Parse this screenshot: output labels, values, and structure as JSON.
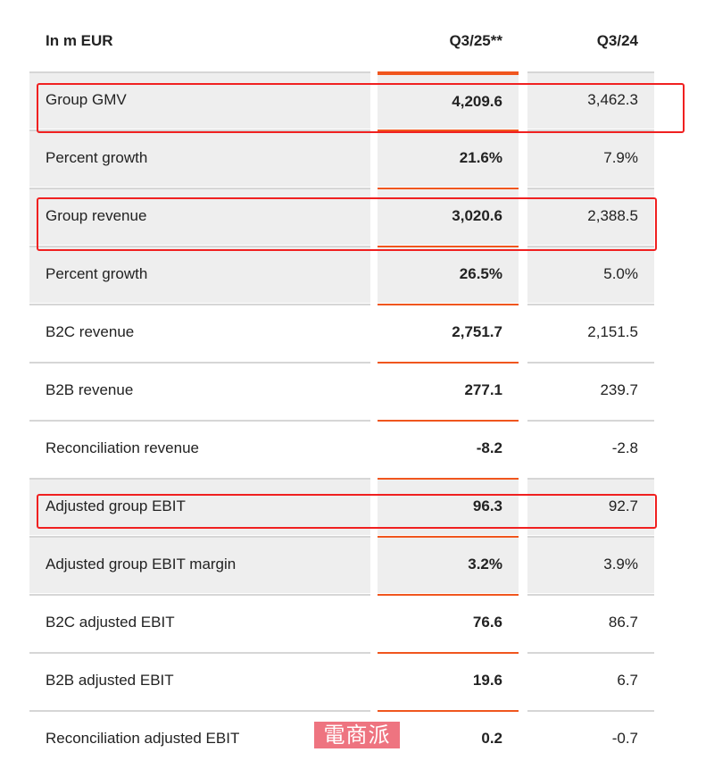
{
  "header": {
    "label": "In m EUR",
    "col1": "Q3/25**",
    "col2": "Q3/24"
  },
  "rows": [
    {
      "label": "Group GMV",
      "q325": "4,209.6",
      "q324": "3,462.3",
      "shaded": true,
      "highlighted": true
    },
    {
      "label": "Percent growth",
      "q325": "21.6%",
      "q324": "7.9%",
      "shaded": true
    },
    {
      "label": "Group revenue",
      "q325": "3,020.6",
      "q324": "2,388.5",
      "shaded": true,
      "highlighted": true
    },
    {
      "label": "Percent growth",
      "q325": "26.5%",
      "q324": "5.0%",
      "shaded": true
    },
    {
      "label": "B2C revenue",
      "q325": "2,751.7",
      "q324": "2,151.5"
    },
    {
      "label": "B2B revenue",
      "q325": "277.1",
      "q324": "239.7"
    },
    {
      "label": "Reconciliation revenue",
      "q325": "-8.2",
      "q324": "-2.8"
    },
    {
      "label": "Adjusted group EBIT",
      "q325": "96.3",
      "q324": "92.7",
      "shaded": true,
      "highlighted": true
    },
    {
      "label": "Adjusted group EBIT margin",
      "q325": "3.2%",
      "q324": "3.9%",
      "shaded": true
    },
    {
      "label": "B2C adjusted EBIT",
      "q325": "76.6",
      "q324": "86.7"
    },
    {
      "label": "B2B adjusted EBIT",
      "q325": "19.6",
      "q324": "6.7"
    },
    {
      "label": "Reconciliation adjusted EBIT",
      "q325": "0.2",
      "q324": "-0.7"
    }
  ],
  "watermark": "電商派",
  "colors": {
    "accent": "#f0561e",
    "highlight": "#f02020",
    "shade": "#eeeeee"
  }
}
